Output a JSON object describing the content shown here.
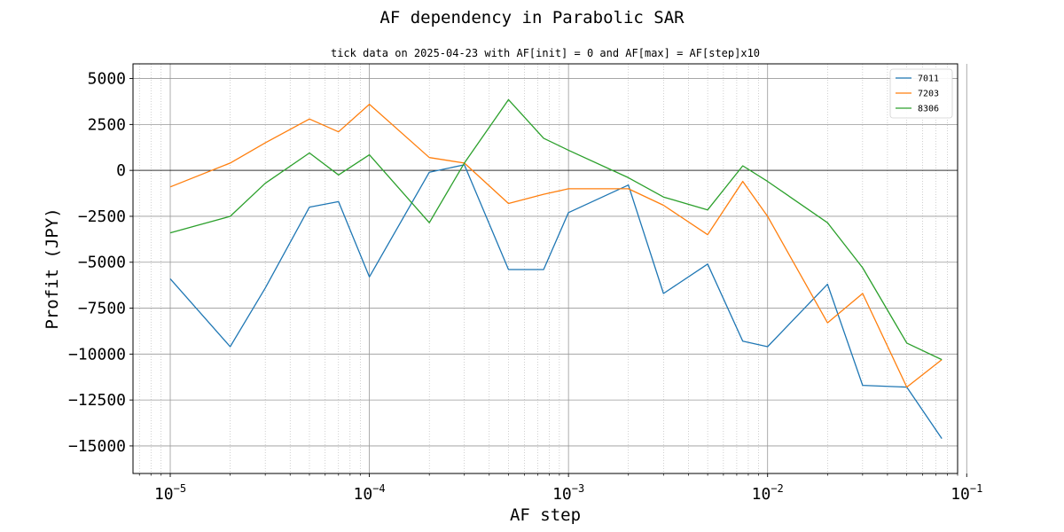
{
  "chart_data": {
    "type": "line",
    "title": "AF dependency in Parabolic SAR",
    "subtitle": "tick data on 2025-04-23 with AF[init] = 0 and AF[max] = AF[step]x10",
    "xlabel": "AF step",
    "ylabel": "Profit (JPY)",
    "xscale": "log",
    "xlim": [
      6.5e-06,
      0.09
    ],
    "ylim": [
      -16500,
      5800
    ],
    "xtick_values": [
      1e-05,
      0.0001,
      0.001,
      0.01,
      0.1
    ],
    "xtick_labels": [
      {
        "base": "10",
        "exp": "−5"
      },
      {
        "base": "10",
        "exp": "−4"
      },
      {
        "base": "10",
        "exp": "−3"
      },
      {
        "base": "10",
        "exp": "−2"
      },
      {
        "base": "10",
        "exp": "−1"
      }
    ],
    "ytick_values": [
      5000,
      2500,
      0,
      -2500,
      -5000,
      -7500,
      -10000,
      -12500,
      -15000
    ],
    "ytick_labels": [
      "5000",
      "2500",
      "0",
      "−2500",
      "−5000",
      "−7500",
      "−10000",
      "−12500",
      "−15000"
    ],
    "grid": true,
    "legend_position": "top-right",
    "x": [
      1e-05,
      2e-05,
      3e-05,
      5e-05,
      7e-05,
      0.0001,
      0.0002,
      0.0003,
      0.0005,
      0.00075,
      0.001,
      0.002,
      0.003,
      0.005,
      0.0075,
      0.01,
      0.02,
      0.03,
      0.05,
      0.075
    ],
    "series": [
      {
        "name": "7011",
        "color": "#1f77b4",
        "values": [
          -5900,
          -9600,
          -6400,
          -2000,
          -1700,
          -5800,
          -100,
          300,
          -5400,
          -5400,
          -2300,
          -800,
          -6700,
          -5100,
          -9300,
          -9600,
          -6200,
          -11700,
          -11800,
          -14600
        ]
      },
      {
        "name": "7203",
        "color": "#ff7f0e",
        "values": [
          -900,
          400,
          1500,
          2800,
          2100,
          3600,
          700,
          400,
          -1800,
          -1300,
          -1000,
          -1000,
          -1900,
          -3500,
          -600,
          -2500,
          -8300,
          -6700,
          -11800,
          -10300
        ]
      },
      {
        "name": "8306",
        "color": "#2ca02c",
        "values": [
          -3400,
          -2500,
          -700,
          950,
          -250,
          850,
          -2850,
          400,
          3850,
          1750,
          1100,
          -400,
          -1450,
          -2150,
          250,
          -600,
          -2850,
          -5300,
          -9400,
          -10300
        ]
      }
    ]
  }
}
